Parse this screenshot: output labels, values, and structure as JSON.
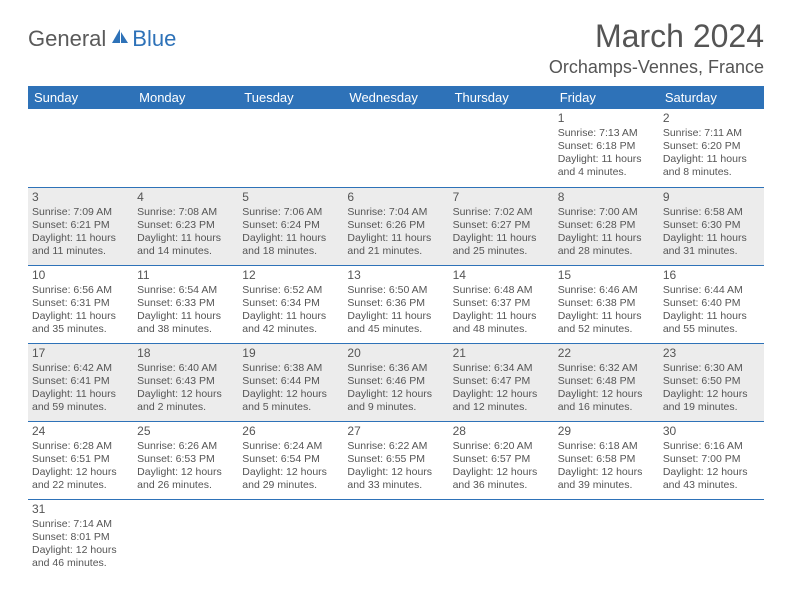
{
  "logo": {
    "part1": "General",
    "part2": "Blue"
  },
  "title": "March 2024",
  "location": "Orchamps-Vennes, France",
  "colors": {
    "header_bg": "#2e72b8",
    "header_text": "#ffffff",
    "row_alt_bg": "#ececec",
    "row_bg": "#ffffff",
    "border": "#2e72b8",
    "text": "#555555",
    "logo_gray": "#5a5a5a",
    "logo_blue": "#2e72b8"
  },
  "days": [
    "Sunday",
    "Monday",
    "Tuesday",
    "Wednesday",
    "Thursday",
    "Friday",
    "Saturday"
  ],
  "weeks": [
    [
      null,
      null,
      null,
      null,
      null,
      {
        "n": "1",
        "sr": "Sunrise: 7:13 AM",
        "ss": "Sunset: 6:18 PM",
        "dl": "Daylight: 11 hours and 4 minutes."
      },
      {
        "n": "2",
        "sr": "Sunrise: 7:11 AM",
        "ss": "Sunset: 6:20 PM",
        "dl": "Daylight: 11 hours and 8 minutes."
      }
    ],
    [
      {
        "n": "3",
        "sr": "Sunrise: 7:09 AM",
        "ss": "Sunset: 6:21 PM",
        "dl": "Daylight: 11 hours and 11 minutes."
      },
      {
        "n": "4",
        "sr": "Sunrise: 7:08 AM",
        "ss": "Sunset: 6:23 PM",
        "dl": "Daylight: 11 hours and 14 minutes."
      },
      {
        "n": "5",
        "sr": "Sunrise: 7:06 AM",
        "ss": "Sunset: 6:24 PM",
        "dl": "Daylight: 11 hours and 18 minutes."
      },
      {
        "n": "6",
        "sr": "Sunrise: 7:04 AM",
        "ss": "Sunset: 6:26 PM",
        "dl": "Daylight: 11 hours and 21 minutes."
      },
      {
        "n": "7",
        "sr": "Sunrise: 7:02 AM",
        "ss": "Sunset: 6:27 PM",
        "dl": "Daylight: 11 hours and 25 minutes."
      },
      {
        "n": "8",
        "sr": "Sunrise: 7:00 AM",
        "ss": "Sunset: 6:28 PM",
        "dl": "Daylight: 11 hours and 28 minutes."
      },
      {
        "n": "9",
        "sr": "Sunrise: 6:58 AM",
        "ss": "Sunset: 6:30 PM",
        "dl": "Daylight: 11 hours and 31 minutes."
      }
    ],
    [
      {
        "n": "10",
        "sr": "Sunrise: 6:56 AM",
        "ss": "Sunset: 6:31 PM",
        "dl": "Daylight: 11 hours and 35 minutes."
      },
      {
        "n": "11",
        "sr": "Sunrise: 6:54 AM",
        "ss": "Sunset: 6:33 PM",
        "dl": "Daylight: 11 hours and 38 minutes."
      },
      {
        "n": "12",
        "sr": "Sunrise: 6:52 AM",
        "ss": "Sunset: 6:34 PM",
        "dl": "Daylight: 11 hours and 42 minutes."
      },
      {
        "n": "13",
        "sr": "Sunrise: 6:50 AM",
        "ss": "Sunset: 6:36 PM",
        "dl": "Daylight: 11 hours and 45 minutes."
      },
      {
        "n": "14",
        "sr": "Sunrise: 6:48 AM",
        "ss": "Sunset: 6:37 PM",
        "dl": "Daylight: 11 hours and 48 minutes."
      },
      {
        "n": "15",
        "sr": "Sunrise: 6:46 AM",
        "ss": "Sunset: 6:38 PM",
        "dl": "Daylight: 11 hours and 52 minutes."
      },
      {
        "n": "16",
        "sr": "Sunrise: 6:44 AM",
        "ss": "Sunset: 6:40 PM",
        "dl": "Daylight: 11 hours and 55 minutes."
      }
    ],
    [
      {
        "n": "17",
        "sr": "Sunrise: 6:42 AM",
        "ss": "Sunset: 6:41 PM",
        "dl": "Daylight: 11 hours and 59 minutes."
      },
      {
        "n": "18",
        "sr": "Sunrise: 6:40 AM",
        "ss": "Sunset: 6:43 PM",
        "dl": "Daylight: 12 hours and 2 minutes."
      },
      {
        "n": "19",
        "sr": "Sunrise: 6:38 AM",
        "ss": "Sunset: 6:44 PM",
        "dl": "Daylight: 12 hours and 5 minutes."
      },
      {
        "n": "20",
        "sr": "Sunrise: 6:36 AM",
        "ss": "Sunset: 6:46 PM",
        "dl": "Daylight: 12 hours and 9 minutes."
      },
      {
        "n": "21",
        "sr": "Sunrise: 6:34 AM",
        "ss": "Sunset: 6:47 PM",
        "dl": "Daylight: 12 hours and 12 minutes."
      },
      {
        "n": "22",
        "sr": "Sunrise: 6:32 AM",
        "ss": "Sunset: 6:48 PM",
        "dl": "Daylight: 12 hours and 16 minutes."
      },
      {
        "n": "23",
        "sr": "Sunrise: 6:30 AM",
        "ss": "Sunset: 6:50 PM",
        "dl": "Daylight: 12 hours and 19 minutes."
      }
    ],
    [
      {
        "n": "24",
        "sr": "Sunrise: 6:28 AM",
        "ss": "Sunset: 6:51 PM",
        "dl": "Daylight: 12 hours and 22 minutes."
      },
      {
        "n": "25",
        "sr": "Sunrise: 6:26 AM",
        "ss": "Sunset: 6:53 PM",
        "dl": "Daylight: 12 hours and 26 minutes."
      },
      {
        "n": "26",
        "sr": "Sunrise: 6:24 AM",
        "ss": "Sunset: 6:54 PM",
        "dl": "Daylight: 12 hours and 29 minutes."
      },
      {
        "n": "27",
        "sr": "Sunrise: 6:22 AM",
        "ss": "Sunset: 6:55 PM",
        "dl": "Daylight: 12 hours and 33 minutes."
      },
      {
        "n": "28",
        "sr": "Sunrise: 6:20 AM",
        "ss": "Sunset: 6:57 PM",
        "dl": "Daylight: 12 hours and 36 minutes."
      },
      {
        "n": "29",
        "sr": "Sunrise: 6:18 AM",
        "ss": "Sunset: 6:58 PM",
        "dl": "Daylight: 12 hours and 39 minutes."
      },
      {
        "n": "30",
        "sr": "Sunrise: 6:16 AM",
        "ss": "Sunset: 7:00 PM",
        "dl": "Daylight: 12 hours and 43 minutes."
      }
    ],
    [
      {
        "n": "31",
        "sr": "Sunrise: 7:14 AM",
        "ss": "Sunset: 8:01 PM",
        "dl": "Daylight: 12 hours and 46 minutes."
      },
      null,
      null,
      null,
      null,
      null,
      null
    ]
  ]
}
